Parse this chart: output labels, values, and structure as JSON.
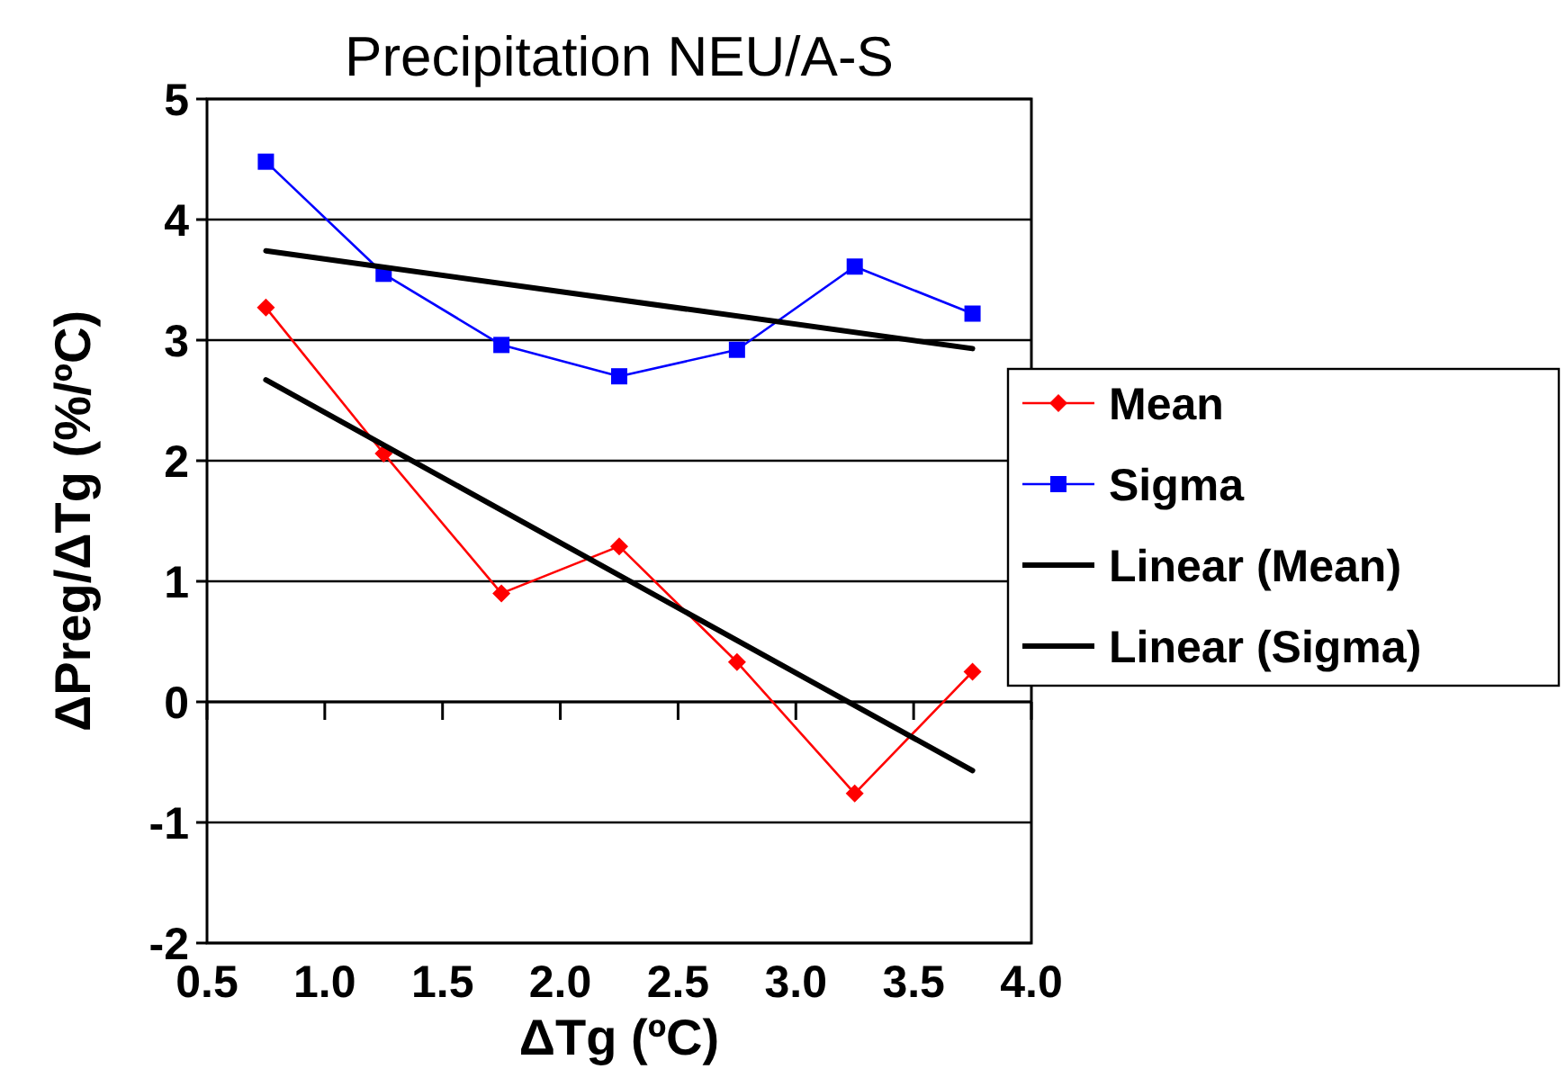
{
  "chart_data": {
    "type": "line",
    "title": "Precipitation NEU/A-S",
    "xlabel": "ΔTg (ºC)",
    "ylabel": "ΔPreg/ΔTg (%/ºC)",
    "xlim": [
      0.5,
      4.0
    ],
    "xticks": [
      {
        "value": 0.5,
        "label": "0.5"
      },
      {
        "value": 1,
        "label": "1.0"
      },
      {
        "value": 1.5,
        "label": "1.5"
      },
      {
        "value": 2,
        "label": "2.0"
      },
      {
        "value": 2.5,
        "label": "2.5"
      },
      {
        "value": 3,
        "label": "3.0"
      },
      {
        "value": 3.5,
        "label": "3.5"
      },
      {
        "value": 4,
        "label": "4.0"
      }
    ],
    "ylim": [
      -2,
      5
    ],
    "yticks": [
      -2,
      -1,
      0,
      1,
      2,
      3,
      4,
      5
    ],
    "grid": "y",
    "legend": "right",
    "series": [
      {
        "name": "Mean",
        "color": "#ff0000",
        "marker": "diamond",
        "x": [
          0.75,
          1.25,
          1.75,
          2.25,
          2.75,
          3.25,
          3.75
        ],
        "values": [
          3.27,
          2.06,
          0.9,
          1.29,
          0.33,
          -0.76,
          0.25
        ]
      },
      {
        "name": "Sigma",
        "color": "#0000ff",
        "marker": "square",
        "x": [
          0.75,
          1.25,
          1.75,
          2.25,
          2.75,
          3.25,
          3.75
        ],
        "values": [
          4.48,
          3.55,
          2.96,
          2.7,
          2.92,
          3.61,
          3.22
        ]
      },
      {
        "name": "Linear (Mean)",
        "color": "#000000",
        "marker": "none",
        "x": [
          0.75,
          3.75
        ],
        "values": [
          2.67,
          -0.57
        ]
      },
      {
        "name": "Linear (Sigma)",
        "color": "#000000",
        "marker": "none",
        "x": [
          0.75,
          3.75
        ],
        "values": [
          3.74,
          2.93
        ]
      }
    ]
  }
}
